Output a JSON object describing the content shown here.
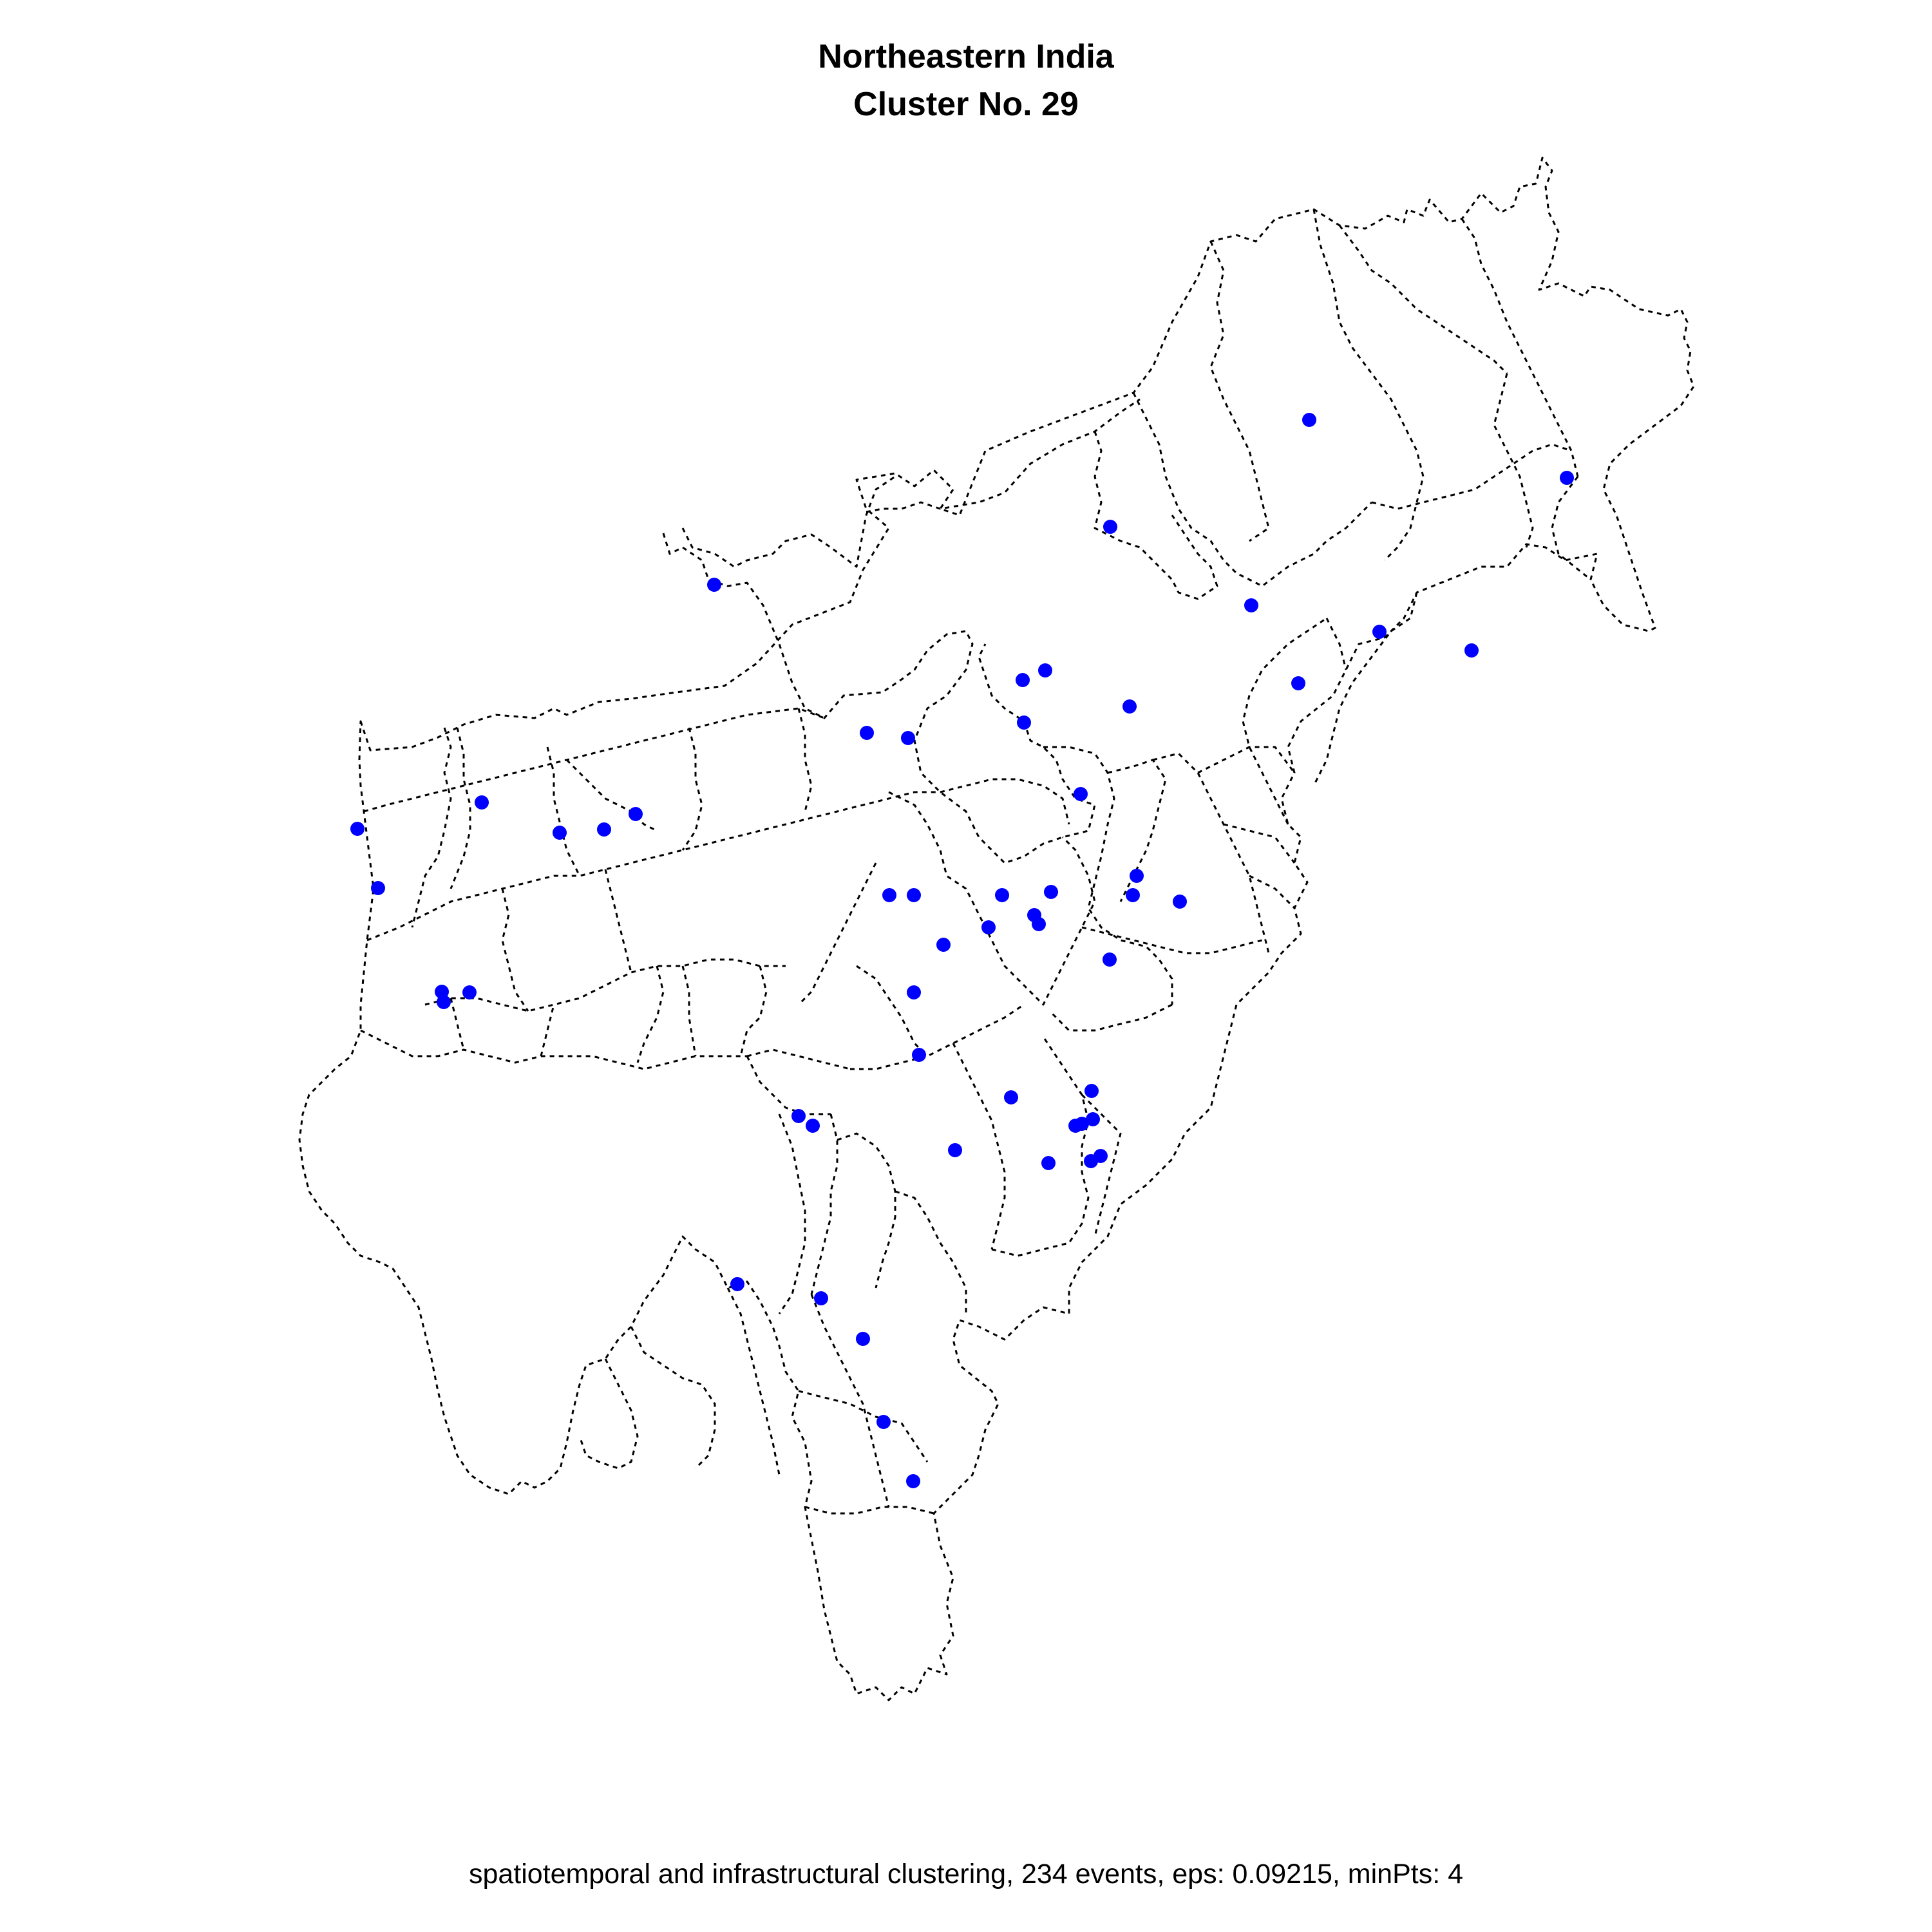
{
  "title": {
    "line1": "Northeastern India",
    "line2": "Cluster No. 29"
  },
  "caption": "spatiotemporal and infrastructural clustering, 234 events, eps: 0.09215, minPts: 4",
  "colors": {
    "background": "#ffffff",
    "boundary": "#000000",
    "event_point": "#0000ff"
  },
  "map": {
    "region": "Northeastern India",
    "boundary_style": "dotted district borders",
    "marker_shape": "filled circle"
  }
}
